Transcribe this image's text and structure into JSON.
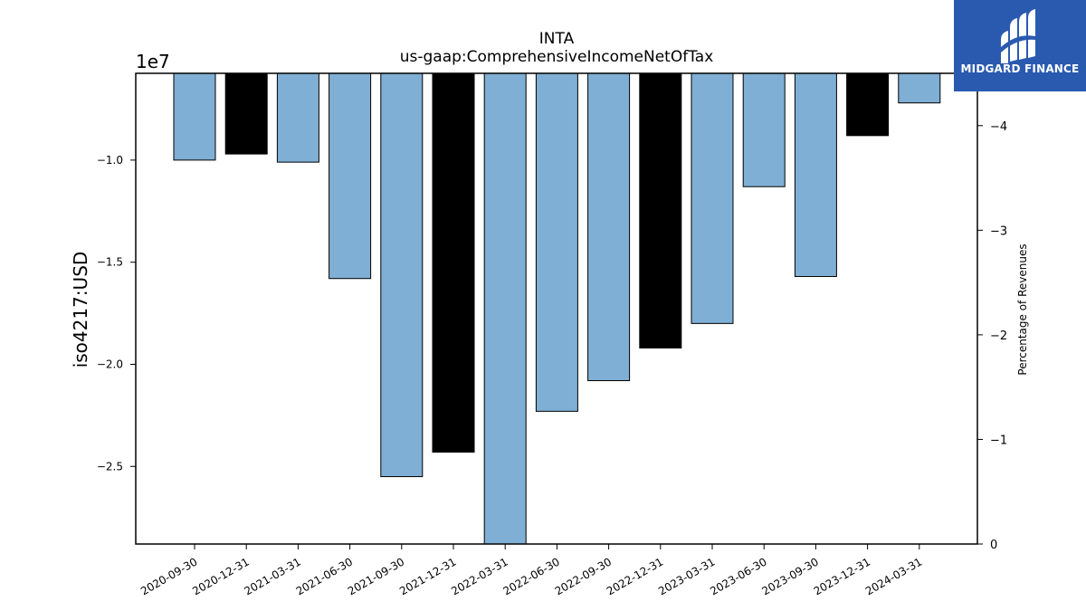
{
  "brand": {
    "name": "MIDGARD FINANCE",
    "bg_color": "#2a5ab0",
    "icon": "stylized-m-logo-icon"
  },
  "chart_data": {
    "type": "bar",
    "title": "INTA",
    "subtitle": "us-gaap:ComprehensiveIncomeNetOfTax",
    "ylabel": "iso4217:USD",
    "y2label": "Percentage of Revenues",
    "offset_label": "1e7",
    "categories": [
      "2020-09-30",
      "2020-12-31",
      "2021-03-31",
      "2021-06-30",
      "2021-09-30",
      "2021-12-31",
      "2022-03-31",
      "2022-06-30",
      "2022-09-30",
      "2022-12-31",
      "2023-03-31",
      "2023-06-30",
      "2023-09-30",
      "2023-12-31",
      "2024-03-31"
    ],
    "values": [
      -10000000,
      -9700000,
      -10100000,
      -15800000,
      -25500000,
      -24300000,
      -29000000,
      -22300000,
      -20800000,
      -19200000,
      -18000000,
      -11300000,
      -15700000,
      -8800000,
      -7200000
    ],
    "bar_colors": [
      "#7fafd4",
      "#000000",
      "#7fafd4",
      "#7fafd4",
      "#7fafd4",
      "#000000",
      "#7fafd4",
      "#7fafd4",
      "#7fafd4",
      "#000000",
      "#7fafd4",
      "#7fafd4",
      "#7fafd4",
      "#000000",
      "#7fafd4"
    ],
    "ylim": [
      -28800000,
      -5750000
    ],
    "yticks": [
      -10000000,
      -15000000,
      -20000000,
      -25000000
    ],
    "ytick_labels": [
      "−1.0",
      "−1.5",
      "−2.0",
      "−2.5"
    ],
    "y2lim": [
      0,
      -4.5
    ],
    "y2ticks": [
      0,
      -1,
      -2,
      -3,
      -4
    ],
    "y2tick_labels": [
      "0",
      "−1",
      "−2",
      "−3",
      "−4"
    ],
    "grid": false
  }
}
